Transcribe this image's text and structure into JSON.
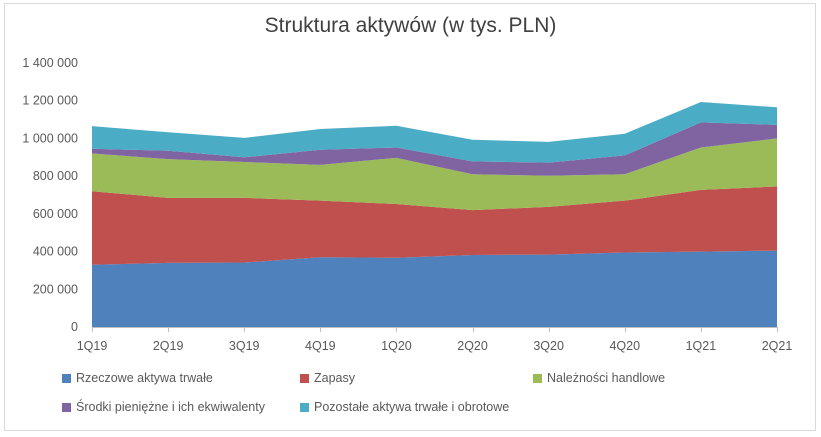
{
  "chart_data": {
    "type": "area",
    "stacked": true,
    "title": "Struktura aktywów (w tys. PLN)",
    "xlabel": "",
    "ylabel": "",
    "categories": [
      "1Q19",
      "2Q19",
      "3Q19",
      "4Q19",
      "1Q20",
      "2Q20",
      "3Q20",
      "4Q20",
      "1Q21",
      "2Q21"
    ],
    "ylim": [
      0,
      1400000
    ],
    "yticks": [
      0,
      200000,
      400000,
      600000,
      800000,
      1000000,
      1200000,
      1400000
    ],
    "ytick_labels": [
      "0",
      "200 000",
      "400 000",
      "600 000",
      "800 000",
      "1 000 000",
      "1 200 000",
      "1 400 000"
    ],
    "grid": false,
    "legend_position": "bottom",
    "series": [
      {
        "name": "Rzeczowe aktywa trwałe",
        "color": "#4F81BD",
        "values": [
          330000,
          340000,
          342000,
          370000,
          367000,
          382000,
          384000,
          395000,
          400000,
          405000
        ]
      },
      {
        "name": "Zapasy",
        "color": "#C0504D",
        "values": [
          390000,
          345000,
          343000,
          300000,
          285000,
          238000,
          253000,
          275000,
          327000,
          340000
        ]
      },
      {
        "name": "Należności handlowe",
        "color": "#9BBB59",
        "values": [
          200000,
          205000,
          190000,
          190000,
          245000,
          190000,
          165000,
          140000,
          225000,
          255000
        ]
      },
      {
        "name": "Środki pieniężne i ich ekwiwalenty",
        "color": "#8064A2",
        "values": [
          25000,
          45000,
          25000,
          80000,
          55000,
          68000,
          70000,
          100000,
          133000,
          72000
        ]
      },
      {
        "name": "Pozostałe aktywa trwałe i obrotowe",
        "color": "#4BACC6",
        "values": [
          120000,
          98000,
          103000,
          110000,
          115000,
          115000,
          110000,
          115000,
          108000,
          93000
        ]
      }
    ]
  }
}
